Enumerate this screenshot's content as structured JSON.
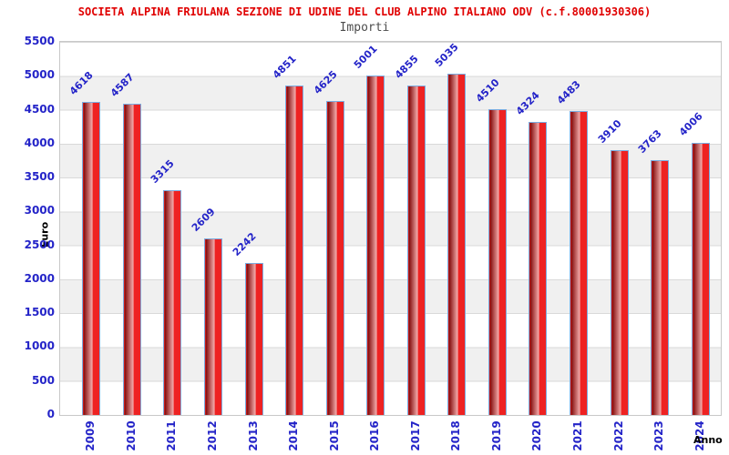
{
  "chart_data": {
    "type": "bar",
    "title": "SOCIETA ALPINA FRIULANA SEZIONE DI UDINE DEL CLUB ALPINO ITALIANO ODV (c.f.80001930306)",
    "subtitle": "Importi",
    "xlabel": "Anno",
    "ylabel": "Euro",
    "categories": [
      "2009",
      "2010",
      "2011",
      "2012",
      "2013",
      "2014",
      "2015",
      "2016",
      "2017",
      "2018",
      "2019",
      "2020",
      "2021",
      "2022",
      "2023",
      "2024"
    ],
    "values": [
      4618,
      4587,
      3315,
      2609,
      2242,
      4851,
      4625,
      5001,
      4855,
      5035,
      4510,
      4324,
      4483,
      3910,
      3763,
      4006
    ],
    "ylim": [
      0,
      5500
    ],
    "ytick_step": 500,
    "yticks": [
      0,
      500,
      1000,
      1500,
      2000,
      2500,
      3000,
      3500,
      4000,
      4500,
      5000,
      5500
    ],
    "grid": true,
    "legend": "none",
    "layout": {
      "bands_alternating": true,
      "value_labels_rotation_deg": -45,
      "x_labels_rotation_deg": -90
    },
    "colors": {
      "title_red": "#e00000",
      "subtitle_gray": "#4d4d4d",
      "label_blue": "#2424c8",
      "axis_black": "#000000",
      "bar_red": "#ee2222",
      "bar_dark": "#871010",
      "bar_light": "#f2a8a8",
      "bar_border": "#7aace0",
      "band_gray": "#f0f0f0",
      "grid_line": "#d9d9d9",
      "plot_border": "#c8c8c8",
      "background": "#ffffff"
    }
  }
}
